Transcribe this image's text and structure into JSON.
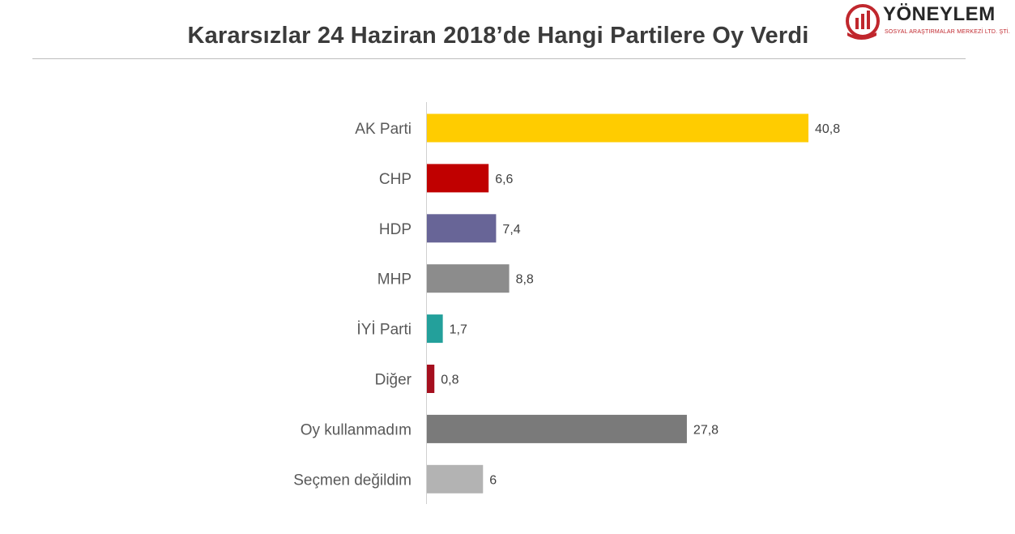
{
  "header": {
    "title": "Kararsızlar 24 Haziran 2018’de Hangi Partilere Oy Verdi"
  },
  "logo": {
    "name": "YÖNEYLEM",
    "subtitle": "SOSYAL ARAŞTIRMALAR MERKEZİ LTD. ŞTİ.",
    "colors": {
      "red": "#c0272d",
      "dark": "#262626"
    }
  },
  "chart_data": {
    "type": "bar",
    "orientation": "horizontal",
    "title": "Kararsızlar 24 Haziran 2018’de Hangi Partilere Oy Verdi",
    "xlabel": "",
    "ylabel": "",
    "categories": [
      "AK Parti",
      "CHP",
      "HDP",
      "MHP",
      "İYİ Parti",
      "Diğer",
      "Oy kullanmadım",
      "Seçmen değildim"
    ],
    "values": [
      40.8,
      6.6,
      7.4,
      8.8,
      1.7,
      0.8,
      27.8,
      6
    ],
    "value_labels": [
      "40,8",
      "6,6",
      "7,4",
      "8,8",
      "1,7",
      "0,8",
      "27,8",
      "6"
    ],
    "colors": [
      "#ffcc00",
      "#c00000",
      "#686597",
      "#8c8c8c",
      "#23a09b",
      "#a50f1e",
      "#7a7a7a",
      "#b3b3b3"
    ],
    "xlim": [
      0,
      40.8
    ],
    "grid": false,
    "legend": "none"
  }
}
